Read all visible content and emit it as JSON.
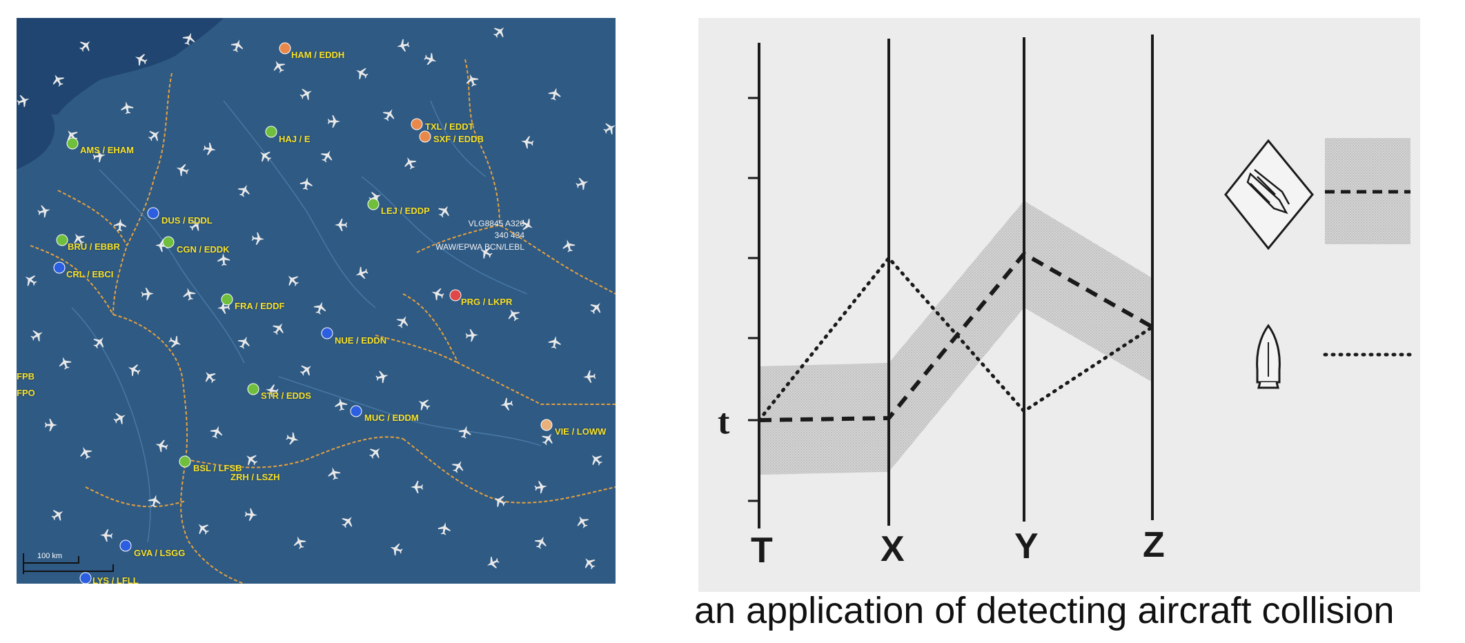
{
  "map": {
    "airports": [
      {
        "code": "HAM / EDDH",
        "color": "#e8894b"
      },
      {
        "code": "AMS / EHAM",
        "color": "#6fbf3c"
      },
      {
        "code": "HAJ / E",
        "color": "#6fbf3c"
      },
      {
        "code": "TXL / EDDT",
        "color": "#e8894b"
      },
      {
        "code": "SXF / EDDB",
        "color": "#e8894b"
      },
      {
        "code": "DUS / EDDL",
        "color": "#2b5ee0"
      },
      {
        "code": "LEJ / EDDP",
        "color": "#6fbf3c"
      },
      {
        "code": "BRU / EBBR",
        "color": "#6fbf3c"
      },
      {
        "code": "CGN / EDDK",
        "color": "#6fbf3c"
      },
      {
        "code": "CRL / EBCI",
        "color": "#2b5ee0"
      },
      {
        "code": "FRA / EDDF",
        "color": "#6fbf3c"
      },
      {
        "code": "PRG / LKPR",
        "color": "#e04848"
      },
      {
        "code": "NUE / EDDN",
        "color": "#2b5ee0"
      },
      {
        "code": "STR / EDDS",
        "color": "#6fbf3c"
      },
      {
        "code": "MUC / EDDM",
        "color": "#2b5ee0"
      },
      {
        "code": "VIE / LOWW",
        "color": "#e8b07a"
      },
      {
        "code": "BSL / LFSB",
        "color": "#6fbf3c"
      },
      {
        "code": "ZRH / LSZH",
        "color": "#6fbf3c"
      },
      {
        "code": "GVA / LSGG",
        "color": "#2b5ee0"
      },
      {
        "code": "LYS / LFLL",
        "color": "#2b5ee0"
      },
      {
        "code": "FPB",
        "color": "#6fbf3c"
      },
      {
        "code": "FPO",
        "color": "#6fbf3c"
      }
    ],
    "flight_label": {
      "line1": "VLG8845 A320",
      "line2": "340 434",
      "line3": "WAW/EPWA BCN/LEBL"
    },
    "scale": "100 km"
  },
  "diagram": {
    "axes": [
      "T",
      "X",
      "Y",
      "Z"
    ],
    "time_marker": "t"
  },
  "caption": "an application of detecting aircraft collision",
  "colors": {
    "map_sea": "#1f4570",
    "map_land": "#2f5a84",
    "border": "#e8a23c",
    "plane": "#e8e8e8",
    "diagram_bg": "#ececec",
    "band": "#c8c8c8"
  }
}
